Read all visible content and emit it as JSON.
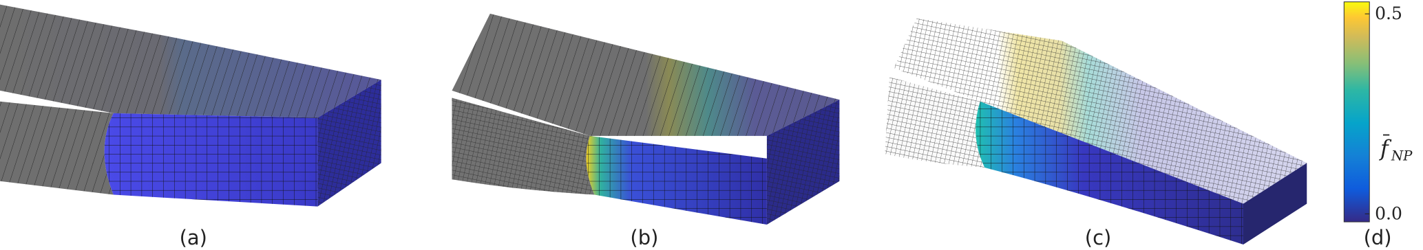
{
  "panels": [
    {
      "label": "(a)"
    },
    {
      "label": "(b)"
    },
    {
      "label": "(c)"
    },
    {
      "label": "(d)"
    }
  ],
  "colorbar": {
    "symbol": "f",
    "subscript": "NP",
    "range": [
      -0.02,
      0.53
    ],
    "ticks": [
      {
        "value": 0.5,
        "label": "0.5"
      },
      {
        "value": 0,
        "label": "0.0"
      }
    ]
  }
}
